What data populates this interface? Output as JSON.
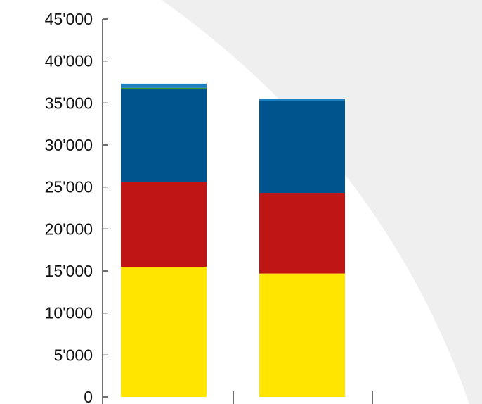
{
  "chart_data": {
    "type": "bar",
    "stacked": true,
    "title": "",
    "xlabel": "",
    "ylabel": "",
    "ylim": [
      0,
      45000
    ],
    "yticks": [
      0,
      5000,
      10000,
      15000,
      20000,
      25000,
      30000,
      35000,
      40000,
      45000
    ],
    "ytick_labels": [
      "0",
      "5'000",
      "10'000",
      "15'000",
      "20'000",
      "25'000",
      "30'000",
      "35'000",
      "40'000",
      "45'000"
    ],
    "categories": [
      "",
      ""
    ],
    "grid": false,
    "legend": "none",
    "series": [
      {
        "values": [
          15500,
          14700
        ],
        "color": "#FFE500"
      },
      {
        "values": [
          10100,
          9600
        ],
        "color": "#C01515"
      },
      {
        "values": [
          11100,
          10900
        ],
        "color": "#00548E"
      },
      {
        "values": [
          100,
          0
        ],
        "color": "#3A8F2E"
      },
      {
        "values": [
          500,
          300
        ],
        "color": "#1E7FC0"
      }
    ]
  },
  "background": {
    "swoosh_color": "#EFEFEF"
  }
}
